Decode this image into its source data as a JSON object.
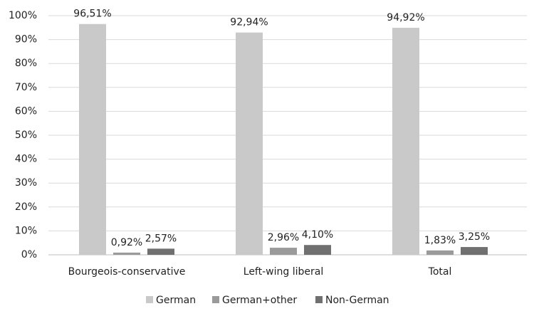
{
  "chart_data": {
    "type": "bar",
    "categories": [
      "Bourgeois-conservative",
      "Left-wing liberal",
      "Total"
    ],
    "series": [
      {
        "name": "German",
        "color": "#c9c9c9",
        "values": [
          96.51,
          92.94,
          94.92
        ],
        "value_labels": [
          "96,51%",
          "92,94%",
          "94,92%"
        ]
      },
      {
        "name": "German+other",
        "color": "#9a9a9a",
        "values": [
          0.92,
          2.96,
          1.83
        ],
        "value_labels": [
          "0,92%",
          "2,96%",
          "1,83%"
        ]
      },
      {
        "name": "Non-German",
        "color": "#707070",
        "values": [
          2.57,
          4.1,
          3.25
        ],
        "value_labels": [
          "2,57%",
          "4,10%",
          "3,25%"
        ]
      }
    ],
    "ylim": [
      0,
      100
    ],
    "yticks": [
      {
        "value": 0,
        "label": "0%"
      },
      {
        "value": 10,
        "label": "10%"
      },
      {
        "value": 20,
        "label": "20%"
      },
      {
        "value": 30,
        "label": "30%"
      },
      {
        "value": 40,
        "label": "40%"
      },
      {
        "value": 50,
        "label": "50%"
      },
      {
        "value": 60,
        "label": "60%"
      },
      {
        "value": 70,
        "label": "70%"
      },
      {
        "value": 80,
        "label": "80%"
      },
      {
        "value": 90,
        "label": "90%"
      },
      {
        "value": 100,
        "label": "100%"
      }
    ],
    "grid": true,
    "legend": "bottom"
  }
}
